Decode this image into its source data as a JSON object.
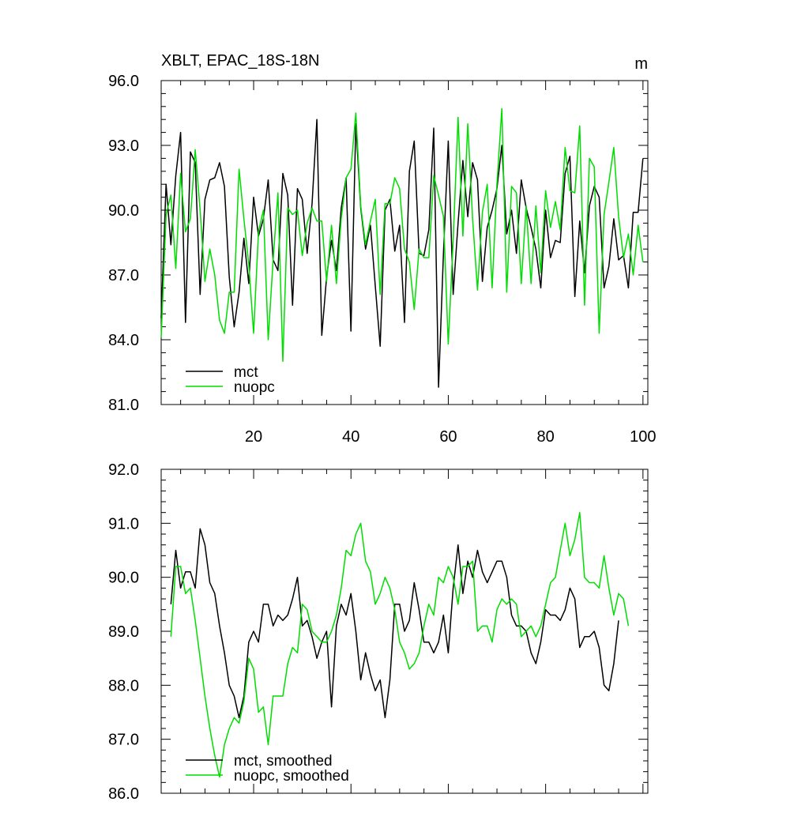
{
  "chart_data": [
    {
      "type": "line",
      "title": "XBLT, EPAC_18S-18N",
      "units": "m",
      "xlabel": "",
      "ylabel": "",
      "xlim": [
        1,
        101
      ],
      "ylim": [
        81,
        96
      ],
      "x_ticks": [
        20,
        40,
        60,
        80,
        100
      ],
      "y_ticks": [
        81.0,
        84.0,
        87.0,
        90.0,
        93.0,
        96.0
      ],
      "x_tick_labels": [
        "20",
        "40",
        "60",
        "80",
        "100"
      ],
      "y_tick_labels": [
        "81.0",
        "84.0",
        "87.0",
        "90.0",
        "93.0",
        "96.0"
      ],
      "grid": false,
      "legend_position": "bottom-left",
      "x_start": 1,
      "series": [
        {
          "name": "mct",
          "color": "#000000",
          "values": [
            85.0,
            91.2,
            88.4,
            91.6,
            93.6,
            84.8,
            92.7,
            92.2,
            86.1,
            90.5,
            91.4,
            91.5,
            92.2,
            91.1,
            86.9,
            84.6,
            86.2,
            88.7,
            86.6,
            90.6,
            88.8,
            89.6,
            91.4,
            87.7,
            87.2,
            91.7,
            90.7,
            85.6,
            91.0,
            90.5,
            88.0,
            90.3,
            94.2,
            84.2,
            86.9,
            88.6,
            87.2,
            90.1,
            91.5,
            84.4,
            94.0,
            90.1,
            88.2,
            89.3,
            86.5,
            83.7,
            90.0,
            90.5,
            88.1,
            89.3,
            84.8,
            91.8,
            93.2,
            88.0,
            87.9,
            89.1,
            93.8,
            81.8,
            88.0,
            93.2,
            86.1,
            89.4,
            92.3,
            89.7,
            92.2,
            91.4,
            86.7,
            89.2,
            90.0,
            91.0,
            93.0,
            88.9,
            90.0,
            88.0,
            91.4,
            90.1,
            89.2,
            88.2,
            86.4,
            90.0,
            87.8,
            88.6,
            88.5,
            91.7,
            92.5,
            86.0,
            89.5,
            87.1,
            90.2,
            91.1,
            90.6,
            86.4,
            87.4,
            89.6,
            87.7,
            87.9,
            86.4,
            89.9,
            89.9,
            92.4
          ]
        },
        {
          "name": "nuopc",
          "color": "#00dd00",
          "values": [
            84.1,
            89.8,
            90.7,
            87.3,
            91.7,
            89.0,
            89.6,
            92.8,
            90.0,
            86.7,
            88.2,
            87.0,
            84.9,
            84.3,
            86.2,
            86.2,
            91.9,
            89.6,
            87.5,
            84.3,
            89.0,
            90.0,
            84.0,
            87.7,
            90.8,
            83.0,
            90.1,
            89.8,
            90.0,
            87.9,
            89.4,
            90.1,
            89.5,
            89.5,
            86.7,
            89.3,
            86.6,
            89.6,
            91.5,
            91.9,
            94.5,
            90.2,
            88.4,
            89.5,
            90.5,
            86.1,
            90.3,
            90.3,
            91.5,
            91.0,
            88.2,
            87.6,
            85.4,
            88.2,
            87.8,
            87.8,
            91.6,
            90.7,
            89.7,
            83.8,
            88.6,
            94.3,
            88.8,
            94.0,
            89.6,
            86.3,
            89.9,
            91.2,
            86.4,
            91.2,
            94.7,
            86.2,
            91.1,
            90.8,
            86.6,
            90.2,
            86.6,
            90.2,
            87.1,
            90.9,
            89.2,
            90.4,
            89.1,
            92.9,
            90.9,
            90.8,
            93.9,
            85.6,
            92.4,
            92.0,
            84.3,
            89.8,
            91.3,
            92.9,
            89.7,
            87.8,
            88.9,
            87.0,
            89.3,
            87.6
          ]
        }
      ]
    },
    {
      "type": "line",
      "title": "",
      "xlabel": "",
      "ylabel": "",
      "xlim": [
        1,
        101
      ],
      "ylim": [
        86,
        92
      ],
      "x_ticks": [
        20,
        40,
        60,
        80,
        100
      ],
      "y_ticks": [
        86.0,
        87.0,
        88.0,
        89.0,
        90.0,
        91.0,
        92.0
      ],
      "x_tick_labels": [],
      "y_tick_labels": [
        "86.0",
        "87.0",
        "88.0",
        "89.0",
        "90.0",
        "91.0",
        "92.0"
      ],
      "grid": false,
      "legend_position": "bottom-left",
      "x_start": 3,
      "series": [
        {
          "name": "mct, smoothed",
          "color": "#000000",
          "values": [
            89.5,
            90.5,
            89.8,
            90.1,
            90.1,
            89.8,
            90.9,
            90.6,
            89.9,
            89.7,
            89.1,
            88.6,
            88.0,
            87.8,
            87.4,
            87.8,
            88.8,
            89.0,
            88.8,
            89.5,
            89.5,
            89.1,
            89.3,
            89.2,
            89.3,
            89.6,
            90.0,
            89.1,
            89.2,
            88.9,
            88.5,
            88.8,
            89.0,
            87.6,
            89.1,
            89.5,
            89.3,
            89.7,
            89.0,
            88.1,
            88.6,
            88.2,
            87.9,
            88.1,
            87.4,
            88.1,
            89.5,
            89.5,
            89.0,
            89.2,
            89.9,
            89.4,
            88.8,
            88.8,
            88.6,
            88.8,
            89.3,
            88.6,
            89.8,
            90.6,
            89.7,
            90.3,
            90.0,
            90.5,
            90.1,
            89.9,
            90.1,
            90.3,
            90.3,
            90.0,
            89.3,
            89.1,
            89.1,
            89.0,
            88.6,
            88.4,
            88.8,
            89.4,
            89.3,
            89.3,
            89.2,
            89.4,
            89.8,
            89.6,
            88.7,
            88.9,
            88.9,
            89.0,
            88.7,
            88.0,
            87.9,
            88.4,
            89.2
          ]
        },
        {
          "name": "nuopc, smoothed",
          "color": "#00dd00",
          "values": [
            88.9,
            90.2,
            90.2,
            89.7,
            89.8,
            89.2,
            88.5,
            87.8,
            87.2,
            86.7,
            86.3,
            86.9,
            87.2,
            87.4,
            87.3,
            87.7,
            88.5,
            88.3,
            87.5,
            87.6,
            86.9,
            87.8,
            87.8,
            87.8,
            88.4,
            88.7,
            88.6,
            89.5,
            89.4,
            89.0,
            88.9,
            88.8,
            88.8,
            89.0,
            89.3,
            89.8,
            90.5,
            90.4,
            90.8,
            91.0,
            90.3,
            90.1,
            89.5,
            89.7,
            90.0,
            89.8,
            89.4,
            88.8,
            88.6,
            88.3,
            88.4,
            88.6,
            89.1,
            89.5,
            89.3,
            90.0,
            89.9,
            90.2,
            90.0,
            89.5,
            90.2,
            90.2,
            90.3,
            89.0,
            89.1,
            89.1,
            88.8,
            89.4,
            89.6,
            89.5,
            89.6,
            89.5,
            88.9,
            89.0,
            89.1,
            88.9,
            89.1,
            89.5,
            89.9,
            90.0,
            90.5,
            91.0,
            90.4,
            90.7,
            91.2,
            90.0,
            89.9,
            89.9,
            89.8,
            90.4,
            89.8,
            89.3,
            89.7,
            89.6,
            89.1
          ]
        }
      ]
    }
  ]
}
